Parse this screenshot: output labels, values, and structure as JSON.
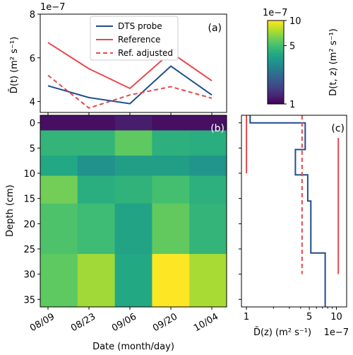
{
  "chart_data": [
    {
      "panel": "a",
      "type": "line",
      "panel_label": "(a)",
      "x": [
        "08/09",
        "08/23",
        "09/06",
        "09/20",
        "10/04"
      ],
      "ylabel": "D̄(t) (m² s⁻¹)",
      "y_exponent": "1e−7",
      "ylim": [
        3.5,
        8
      ],
      "yticks": [
        4,
        6,
        8
      ],
      "legend_position": "top-center",
      "series": [
        {
          "name": "DTS probe",
          "values": [
            4.72,
            4.18,
            3.9,
            5.62,
            4.3
          ],
          "color": "#1f4e8c",
          "dash": "solid"
        },
        {
          "name": "Reference",
          "values": [
            6.7,
            5.5,
            4.6,
            6.25,
            4.95
          ],
          "color": "#e8474c",
          "dash": "solid"
        },
        {
          "name": "Ref. adjusted",
          "values": [
            5.2,
            3.7,
            4.3,
            4.68,
            4.15
          ],
          "color": "#e8474c",
          "dash": "dashed"
        }
      ]
    },
    {
      "panel": "b",
      "type": "heatmap",
      "panel_label": "(b)",
      "xlabel": "Date (month/day)",
      "ylabel": "Depth (cm)",
      "x": [
        "08/09",
        "08/23",
        "09/06",
        "09/20",
        "10/04"
      ],
      "depth_bins": [
        -1.5,
        1.5,
        6.5,
        10.5,
        16,
        26,
        36.5
      ],
      "yticks": [
        0,
        5,
        10,
        15,
        20,
        25,
        30,
        35
      ],
      "ylim": [
        36.5,
        -1.5
      ],
      "values_units": "1e−7 m² s⁻¹",
      "values": [
        [
          1.1,
          1.1,
          1.2,
          1.1,
          1.1
        ],
        [
          4.5,
          4.5,
          5.6,
          4.3,
          4.2
        ],
        [
          4.0,
          3.2,
          3.6,
          3.6,
          3.3
        ],
        [
          6.1,
          4.2,
          4.4,
          5.0,
          4.3
        ],
        [
          5.2,
          4.8,
          3.8,
          5.7,
          4.5
        ],
        [
          5.6,
          7.2,
          4.0,
          10.0,
          7.4
        ]
      ],
      "colorbar": {
        "label": "D(t, z) (m² s⁻¹)",
        "exponent": "1e−7",
        "scale": "log",
        "ticks": [
          1,
          5,
          10
        ],
        "range": [
          1,
          10
        ]
      }
    },
    {
      "panel": "c",
      "type": "line",
      "panel_label": "(c)",
      "xlabel": "D̄(z) (m² s⁻¹)",
      "x_exponent": "1e−7",
      "xscale": "log",
      "xlim": [
        0.88,
        13
      ],
      "xticks": [
        1,
        5,
        10
      ],
      "ylim": [
        36.5,
        -1.5
      ],
      "series": [
        {
          "name": "DTS probe",
          "color": "#1f4e8c",
          "dash": "solid",
          "step_profile": [
            {
              "value": 1.1,
              "from": -1.5,
              "to": 0
            },
            {
              "value": 4.5,
              "from": 0,
              "to": 5.3
            },
            {
              "value": 3.5,
              "from": 5.3,
              "to": 10.3
            },
            {
              "value": 4.8,
              "from": 10.3,
              "to": 15.5
            },
            {
              "value": 5.2,
              "from": 15.5,
              "to": 25.8
            },
            {
              "value": 7.5,
              "from": 25.8,
              "to": 36.5
            }
          ]
        },
        {
          "name": "Reference",
          "color": "#e8474c",
          "dash": "solid",
          "segments": [
            {
              "value": 1.0,
              "from": -1.5,
              "to": 10
            },
            {
              "value": 10.5,
              "from": 3,
              "to": 30
            }
          ]
        },
        {
          "name": "Ref. adjusted",
          "color": "#e8474c",
          "dash": "dashed",
          "segments": [
            {
              "value": 4.15,
              "from": -1.5,
              "to": 30
            }
          ]
        }
      ]
    }
  ]
}
